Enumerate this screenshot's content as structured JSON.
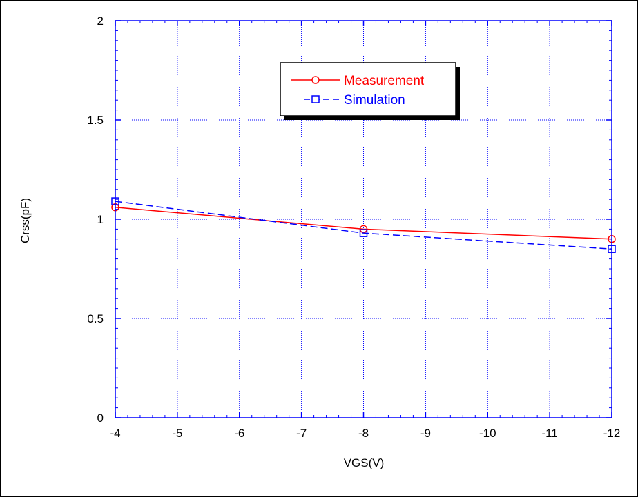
{
  "chart_data": {
    "type": "line",
    "title": "",
    "xlabel": "VGS(V)",
    "ylabel": "Crss(pF)",
    "xlim": [
      -4,
      -12
    ],
    "ylim": [
      0,
      2
    ],
    "x_ticks": [
      -4,
      -5,
      -6,
      -7,
      -8,
      -9,
      -10,
      -11,
      -12
    ],
    "x_tick_labels": [
      "-4",
      "-5",
      "-6",
      "-7",
      "-8",
      "-9",
      "-10",
      "-11",
      "-12"
    ],
    "y_ticks": [
      0,
      0.5,
      1,
      1.5,
      2
    ],
    "y_tick_labels": [
      "0",
      "0.5",
      "1",
      "1.5",
      "2"
    ],
    "grid": true,
    "legend_position": "top-center",
    "series": [
      {
        "name": "Measurement",
        "color": "#ff0000",
        "marker": "circle",
        "line_style": "solid",
        "x": [
          -4,
          -8,
          -12
        ],
        "y": [
          1.06,
          0.95,
          0.9
        ]
      },
      {
        "name": "Simulation",
        "color": "#0000ff",
        "marker": "square",
        "line_style": "dashed",
        "x": [
          -4,
          -8,
          -12
        ],
        "y": [
          1.09,
          0.93,
          0.85
        ]
      }
    ]
  },
  "colors": {
    "axes": "#0000ff",
    "grid": "#0000ff",
    "text": "#000000"
  }
}
